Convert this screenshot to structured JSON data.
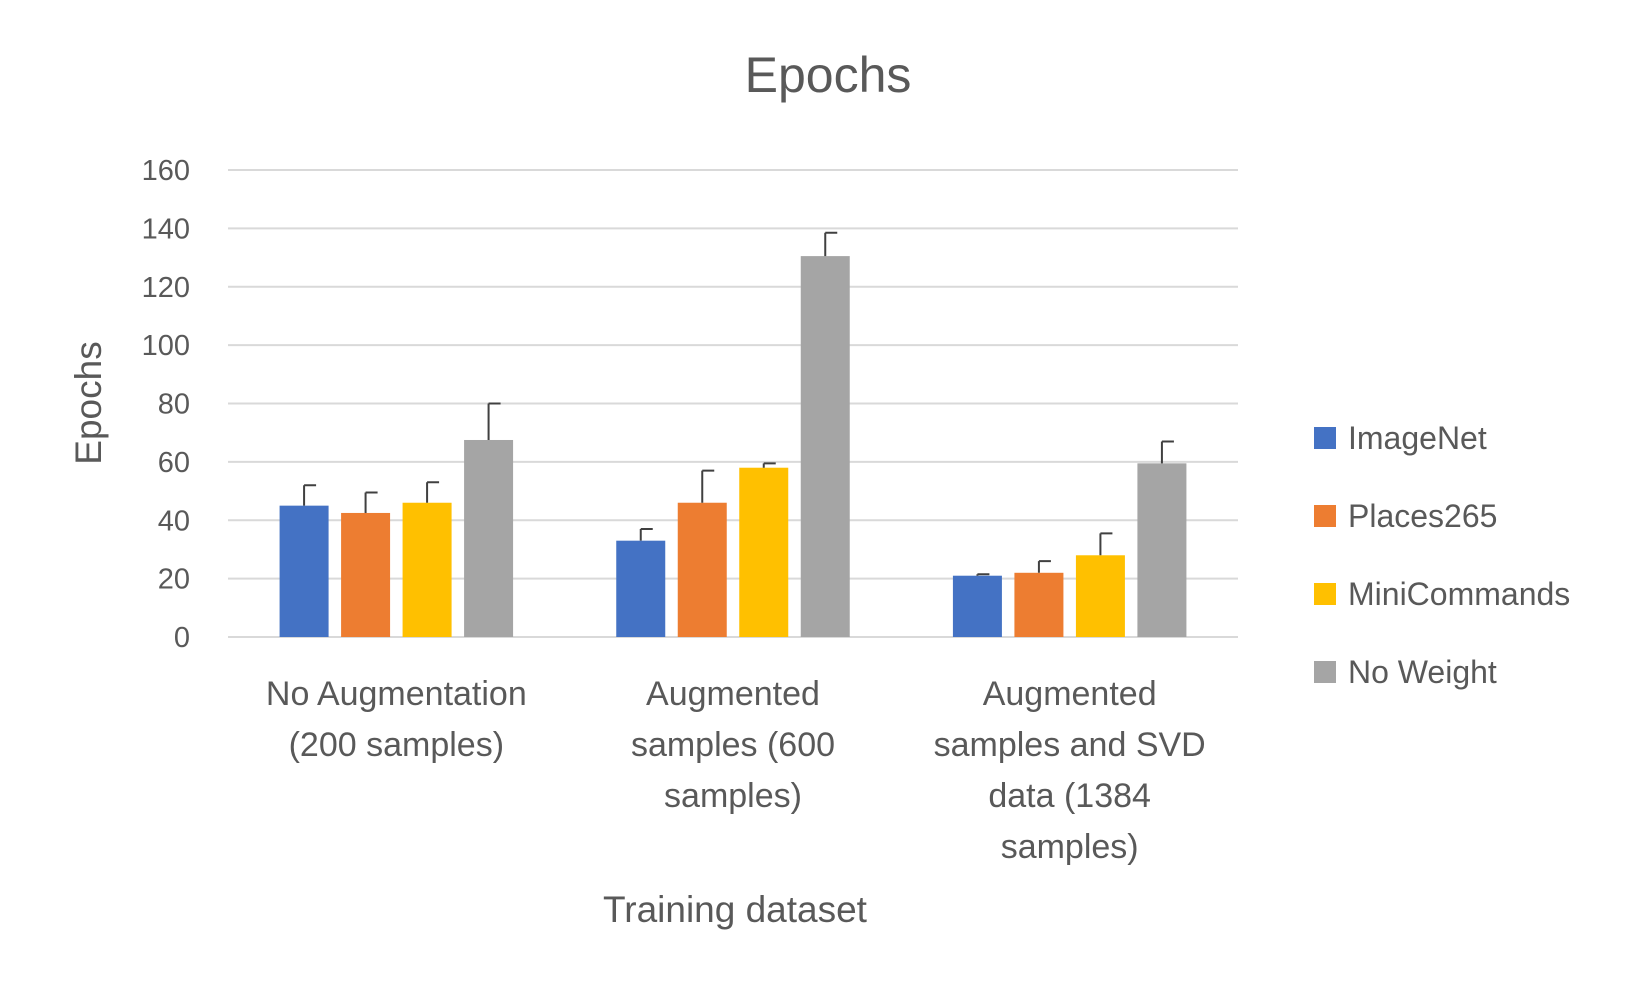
{
  "chart_data": {
    "type": "bar",
    "title": "Epochs",
    "xlabel": "Training dataset",
    "ylabel": "Epochs",
    "ylim": [
      0,
      160
    ],
    "yticks": [
      0,
      20,
      40,
      60,
      80,
      100,
      120,
      140,
      160
    ],
    "grid": true,
    "legend_position": "right",
    "categories": [
      [
        "No Augmentation",
        "(200 samples)"
      ],
      [
        "Augmented",
        "samples (600",
        "samples)"
      ],
      [
        "Augmented",
        "samples and SVD",
        "data (1384",
        "samples)"
      ]
    ],
    "series": [
      {
        "name": "ImageNet",
        "color": "#4472C4",
        "values": [
          45,
          33,
          21
        ],
        "error_plus": [
          7,
          4,
          0.5
        ]
      },
      {
        "name": "Places265",
        "color": "#ED7D31",
        "values": [
          42.5,
          46,
          22
        ],
        "error_plus": [
          7,
          11,
          4
        ]
      },
      {
        "name": "MiniCommands",
        "color": "#FFC000",
        "values": [
          46,
          58,
          28
        ],
        "error_plus": [
          7,
          1.5,
          7.5
        ]
      },
      {
        "name": "No Weight",
        "color": "#A5A5A5",
        "values": [
          67.5,
          130.5,
          59.5
        ],
        "error_plus": [
          12.5,
          8,
          7.5
        ]
      }
    ]
  }
}
